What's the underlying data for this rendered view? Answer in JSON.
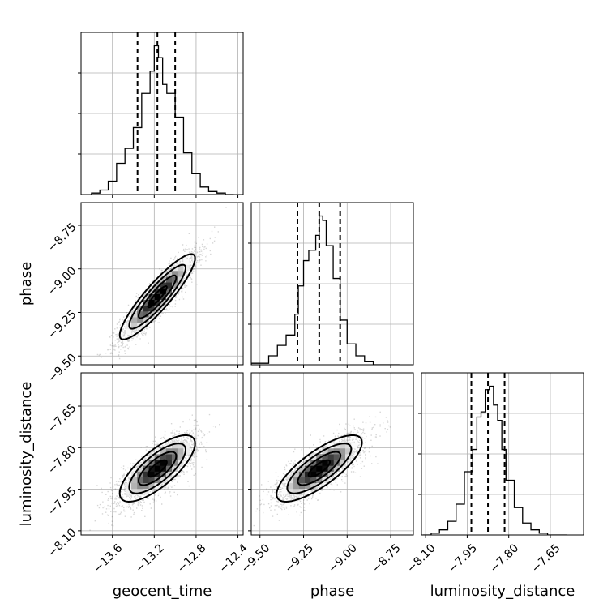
{
  "chart_data": {
    "type": "corner",
    "parameters": [
      "geocent_time",
      "phase",
      "luminosity_distance"
    ],
    "axis_labels": {
      "geocent_time": "geocent_time",
      "phase": "phase",
      "luminosity_distance": "luminosity_distance"
    },
    "ranges": {
      "geocent_time": [
        -13.9,
        -12.35
      ],
      "phase": [
        -9.55,
        -8.62
      ],
      "luminosity_distance": [
        -8.115,
        -7.53
      ]
    },
    "ticks": {
      "geocent_time": [
        {
          "value": -13.6,
          "label": "−13.6"
        },
        {
          "value": -13.2,
          "label": "−13.2"
        },
        {
          "value": -12.8,
          "label": "−12.8"
        },
        {
          "value": -12.4,
          "label": "−12.4"
        }
      ],
      "phase": [
        {
          "value": -9.5,
          "label": "−9.50"
        },
        {
          "value": -9.25,
          "label": "−9.25"
        },
        {
          "value": -9.0,
          "label": "−9.00"
        },
        {
          "value": -8.75,
          "label": "−8.75"
        }
      ],
      "luminosity_distance": [
        {
          "value": -8.1,
          "label": "−8.10"
        },
        {
          "value": -7.95,
          "label": "−7.95"
        },
        {
          "value": -7.8,
          "label": "−7.80"
        },
        {
          "value": -7.65,
          "label": "−7.65"
        }
      ]
    },
    "quantiles": {
      "geocent_time": [
        -13.36,
        -13.17,
        -13.0
      ],
      "phase": [
        -9.285,
        -9.16,
        -9.04
      ],
      "luminosity_distance": [
        -7.935,
        -7.875,
        -7.815
      ]
    },
    "histograms": {
      "geocent_time": {
        "bin_edges": [
          -13.8,
          -13.72,
          -13.64,
          -13.56,
          -13.48,
          -13.4,
          -13.32,
          -13.24,
          -13.2,
          -13.16,
          -13.12,
          -13.08,
          -13.0,
          -12.92,
          -12.84,
          -12.76,
          -12.68,
          -12.6,
          -12.52,
          -12.44
        ],
        "counts": [
          1,
          3,
          9,
          21,
          31,
          45,
          68,
          83,
          100,
          92,
          74,
          68,
          52,
          28,
          14,
          5,
          2,
          1,
          0
        ]
      },
      "phase": {
        "bin_edges": [
          -9.55,
          -9.45,
          -9.4,
          -9.35,
          -9.3,
          -9.28,
          -9.25,
          -9.22,
          -9.18,
          -9.16,
          -9.14,
          -9.12,
          -9.08,
          -9.04,
          -9.0,
          -8.95,
          -8.9,
          -8.85,
          -8.7
        ],
        "counts": [
          1,
          6,
          13,
          20,
          34,
          53,
          70,
          77,
          87,
          100,
          97,
          80,
          58,
          30,
          14,
          6,
          2,
          0
        ]
      },
      "luminosity_distance": {
        "bin_edges": [
          -8.11,
          -8.08,
          -8.05,
          -8.02,
          -7.99,
          -7.96,
          -7.93,
          -7.915,
          -7.9,
          -7.885,
          -7.87,
          -7.855,
          -7.84,
          -7.825,
          -7.81,
          -7.78,
          -7.75,
          -7.72,
          -7.69,
          -7.66,
          -7.63,
          -7.61,
          -7.59
        ],
        "counts": [
          0,
          1,
          3,
          8,
          18,
          37,
          50,
          69,
          72,
          85,
          87,
          76,
          67,
          50,
          32,
          16,
          7,
          3,
          1,
          0,
          0,
          0
        ]
      }
    },
    "correlations": {
      "geocent_time|phase": 0.9,
      "geocent_time|luminosity_distance": 0.75,
      "phase|luminosity_distance": 0.78
    },
    "contour_sigma_levels": [
      0.5,
      1.0,
      1.5,
      2.0
    ],
    "grid": true
  }
}
